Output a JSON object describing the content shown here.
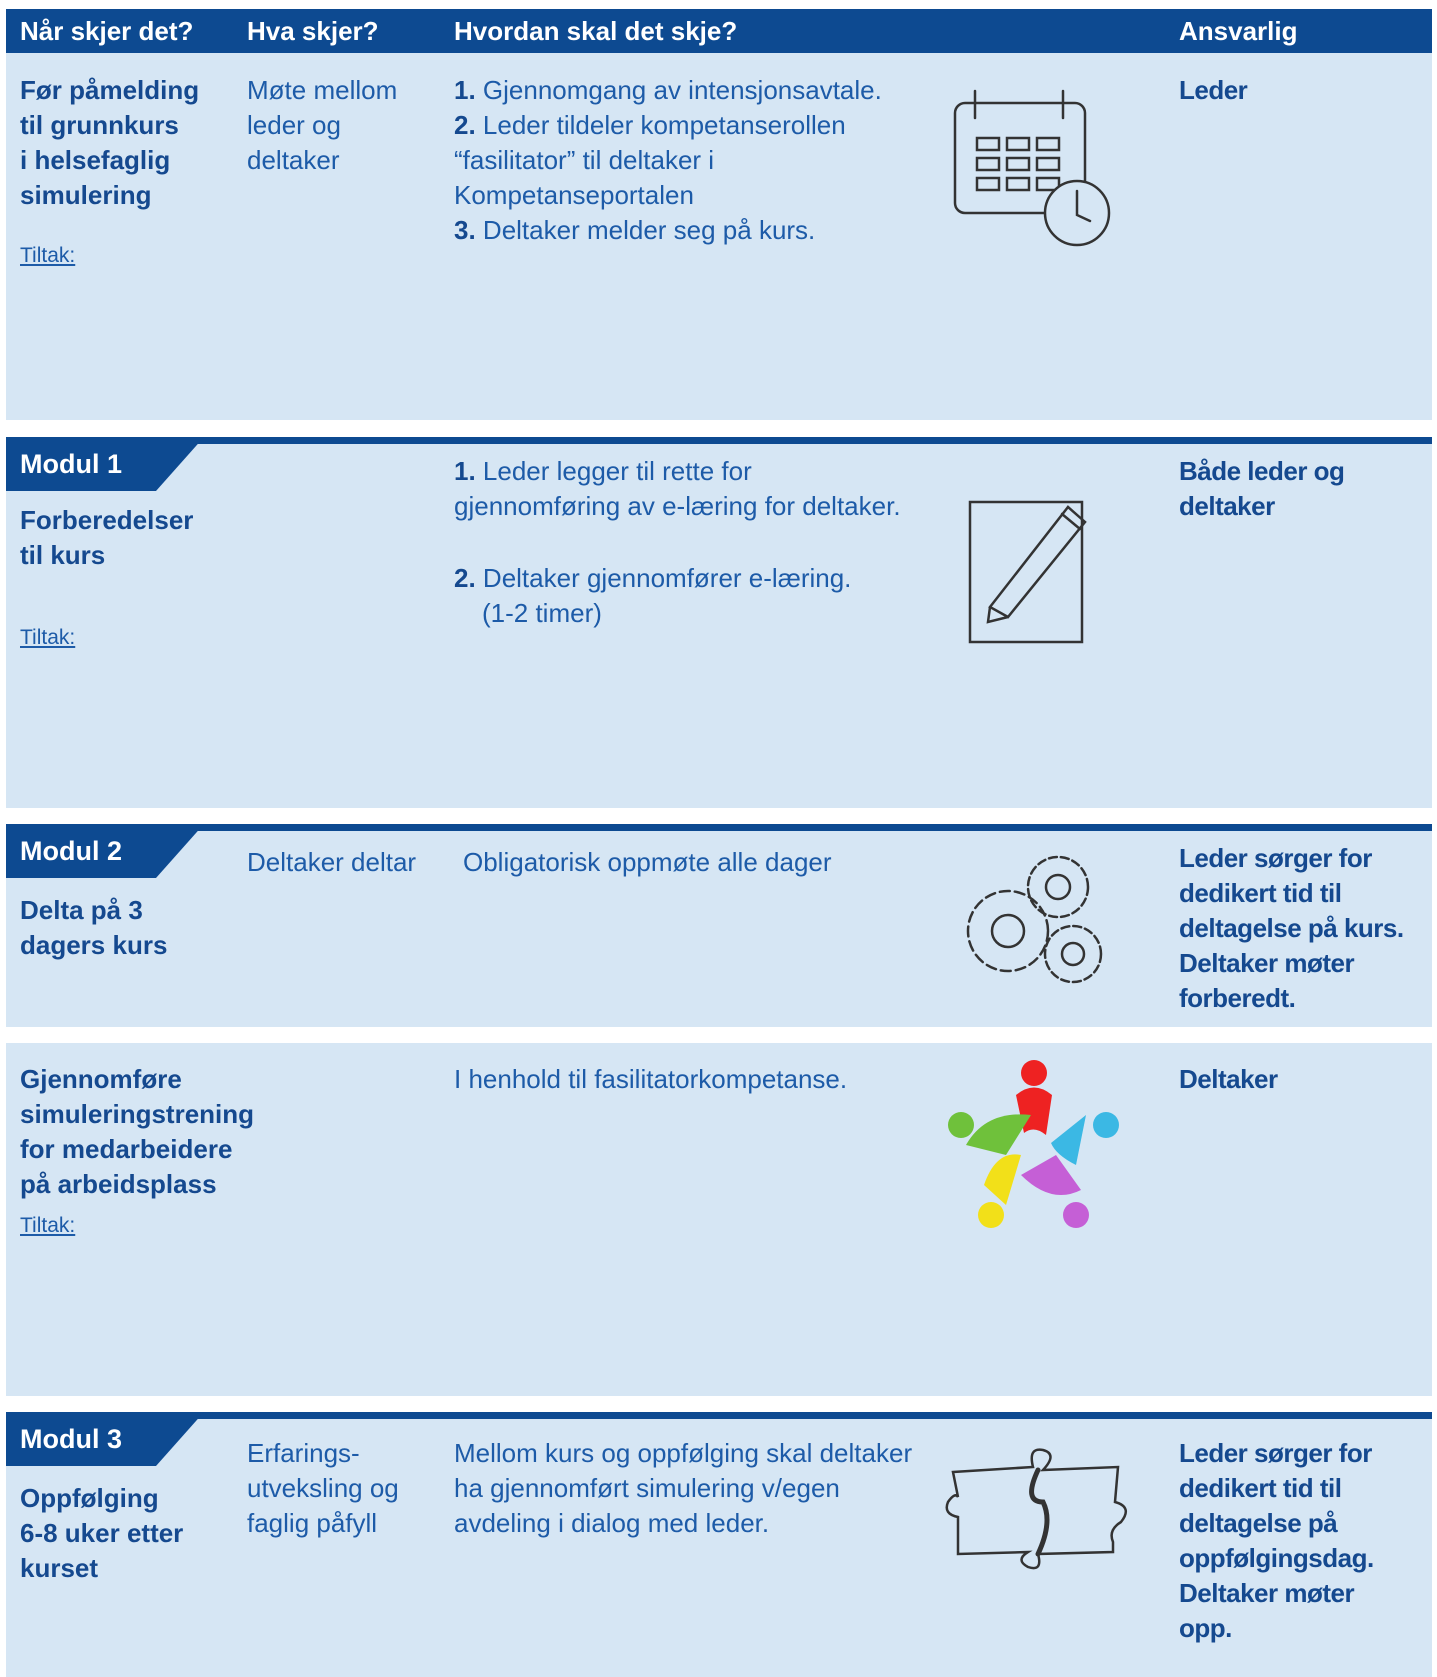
{
  "header": {
    "columns": [
      "Når skjer det?",
      "Hva skjer?",
      "Hvordan skal det skje?",
      "Ansvarlig"
    ]
  },
  "sections": [
    {
      "when": [
        "Før påmelding",
        "til grunnkurs",
        "i helsefaglig",
        "simulering"
      ],
      "tiltak": "Tiltak:",
      "what": [
        "Møte mellom",
        "leder og",
        "deltaker"
      ],
      "how": [
        {
          "num": "1.",
          "text": "Gjennomgang av intensjonsavtale."
        },
        {
          "num": "2.",
          "text": "Leder tildeler kompetanserollen"
        },
        {
          "text": "“fasilitator” til deltaker i"
        },
        {
          "text": "Kompetanseportalen"
        },
        {
          "num": "3.",
          "text": "Deltaker melder seg på kurs."
        }
      ],
      "responsible": [
        "Leder"
      ]
    },
    {
      "module": "Modul 1",
      "when": [
        "Forberedelser",
        "til kurs"
      ],
      "tiltak": "Tiltak:",
      "how": [
        {
          "num": "1.",
          "text": "Leder legger til rette for"
        },
        {
          "text": "gjennomføring av e-læring for deltaker."
        },
        {
          "num": "2.",
          "text": "Deltaker gjennomfører e-læring."
        },
        {
          "text": "(1-2 timer)"
        }
      ],
      "responsible": [
        "Både leder og",
        "deltaker"
      ]
    },
    {
      "module": "Modul 2",
      "when": [
        "Delta på 3",
        "dagers kurs"
      ],
      "what": [
        "Deltaker deltar"
      ],
      "how": [
        {
          "text": "Obligatorisk oppmøte alle dager"
        }
      ],
      "responsible": [
        "Leder sørger for",
        "dedikert tid til",
        "deltagelse på kurs.",
        "Deltaker møter",
        "forberedt."
      ]
    },
    {
      "when": [
        "Gjennomføre",
        "simuleringstrening",
        "for medarbeidere",
        "på arbeidsplass"
      ],
      "tiltak": "Tiltak:",
      "how": [
        {
          "text": "I henhold til fasilitatorkompetanse."
        }
      ],
      "responsible": [
        "Deltaker"
      ]
    },
    {
      "module": "Modul 3",
      "when": [
        "Oppfølging",
        "6-8 uker etter",
        "kurset"
      ],
      "what": [
        "Erfarings-",
        "utveksling og",
        "faglig påfyll"
      ],
      "how": [
        {
          "text": "Mellom kurs og oppfølging skal deltaker"
        },
        {
          "text": "ha gjennomført simulering v/egen"
        },
        {
          "text": "avdeling i dialog med leder."
        }
      ],
      "responsible": [
        "Leder sørger for",
        "dedikert tid til",
        "deltagelse på",
        "oppfølgingsdag.",
        "Deltaker møter",
        "opp."
      ]
    }
  ]
}
